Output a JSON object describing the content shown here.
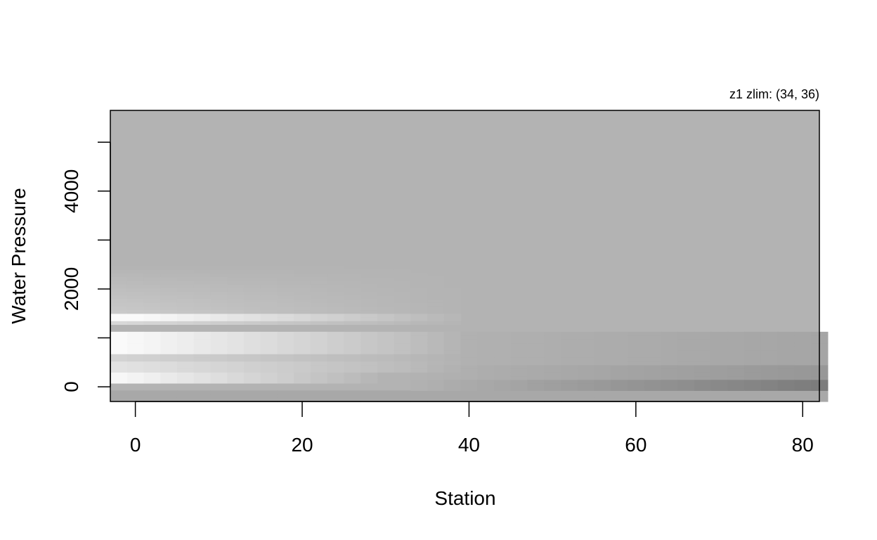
{
  "chart_data": {
    "type": "heatmap",
    "title": "",
    "annotation": "z1   zlim: (34, 36)",
    "xlabel": "Station",
    "ylabel": "Water Pressure",
    "xlim": [
      -3,
      82
    ],
    "ylim": [
      -300,
      5650
    ],
    "x_ticks": [
      0,
      20,
      40,
      60,
      80
    ],
    "y_ticks": [
      0,
      1000,
      2000,
      3000,
      4000,
      5000
    ],
    "y_tick_labels": [
      {
        "value": 0,
        "label": "0"
      },
      {
        "value": 2000,
        "label": "2000"
      },
      {
        "value": 4000,
        "label": "4000"
      }
    ],
    "zlim": [
      34,
      36
    ],
    "palette": "grayscale (light = low, dark = high)",
    "background_color": "#b3b3b3",
    "depth_bands_description": [
      {
        "pressure_range": [
          1300,
          1500
        ],
        "pattern": "near-white at stations 0-15, fading to mid grey beyond station 35"
      },
      {
        "pressure_range": [
          700,
          1100
        ],
        "pattern": "near-white at stations 0-12, mid grey around stations 35-80"
      },
      {
        "pressure_range": [
          0,
          300
        ],
        "pattern": "near-white at stations 0-25, darkening to dark grey near stations 55-82"
      },
      {
        "pressure_range": [
          2000,
          5650
        ],
        "pattern": "uniform grey across all stations"
      }
    ]
  }
}
